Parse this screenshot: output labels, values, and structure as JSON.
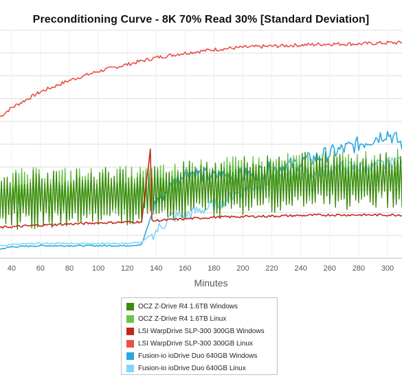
{
  "chart_data": {
    "type": "line",
    "title": "Preconditioning Curve - 8K 70% Read 30% [Standard Deviation]",
    "xlabel": "Minutes",
    "ylabel": "",
    "x_ticks": [
      40,
      60,
      80,
      100,
      120,
      140,
      160,
      180,
      200,
      220,
      240,
      260,
      280,
      300
    ],
    "xlim": [
      32,
      310
    ],
    "ylim": [
      0,
      10
    ],
    "y_ticks_printed": false,
    "grid": true,
    "legend_position": "bottom",
    "series": [
      {
        "name": "OCZ Z-Drive R4 1.6TB Windows",
        "color": "#3a8a0c",
        "x": [
          32,
          60,
          100,
          140,
          180,
          220,
          260,
          300,
          310
        ],
        "y": [
          2.5,
          2.6,
          2.7,
          2.8,
          3.1,
          3.3,
          3.4,
          3.5,
          3.5
        ]
      },
      {
        "name": "OCZ Z-Drive R4 1.6TB Linux",
        "color": "#6cc24a",
        "x": [
          32,
          60,
          100,
          140,
          180,
          220,
          260,
          300,
          310
        ],
        "y": [
          2.8,
          2.9,
          2.9,
          3.0,
          3.3,
          3.5,
          3.6,
          3.7,
          3.7
        ]
      },
      {
        "name": "LSI WarpDrive SLP-300 300GB Windows",
        "color": "#c0281c",
        "x": [
          32,
          60,
          100,
          130,
          136,
          137,
          140,
          180,
          220,
          260,
          300,
          310
        ],
        "y": [
          1.35,
          1.45,
          1.55,
          1.6,
          4.8,
          1.65,
          1.65,
          1.8,
          1.85,
          1.9,
          1.9,
          1.9
        ]
      },
      {
        "name": "LSI WarpDrive SLP-300 300GB Linux",
        "color": "#e8504a",
        "x": [
          32,
          40,
          60,
          80,
          100,
          120,
          140,
          160,
          180,
          200,
          220,
          240,
          260,
          280,
          300,
          310
        ],
        "y": [
          6.2,
          6.6,
          7.3,
          7.8,
          8.2,
          8.5,
          8.8,
          9.0,
          9.15,
          9.25,
          9.3,
          9.35,
          9.4,
          9.4,
          9.45,
          9.45
        ]
      },
      {
        "name": "Fusion-io ioDrive Duo 640GB Windows",
        "color": "#2aa8e0",
        "x": [
          32,
          40,
          60,
          80,
          100,
          120,
          130,
          140,
          160,
          180,
          200,
          220,
          240,
          260,
          280,
          300,
          310
        ],
        "y": [
          0.4,
          0.5,
          0.55,
          0.55,
          0.55,
          0.55,
          0.6,
          2.5,
          3.8,
          3.6,
          3.6,
          3.9,
          4.2,
          4.6,
          5.0,
          5.5,
          5.0
        ]
      },
      {
        "name": "Fusion-io ioDrive Duo 640GB Linux",
        "color": "#7fd6f8",
        "x": [
          32,
          40,
          60,
          80,
          100,
          120,
          130,
          140,
          150,
          160,
          180,
          200,
          220,
          240,
          260,
          280,
          300,
          310
        ],
        "y": [
          0.55,
          0.6,
          0.65,
          0.65,
          0.65,
          0.65,
          0.7,
          1.2,
          1.8,
          1.9,
          2.3,
          3.0,
          3.5,
          3.6,
          3.9,
          4.0,
          4.1,
          4.3
        ]
      }
    ]
  }
}
